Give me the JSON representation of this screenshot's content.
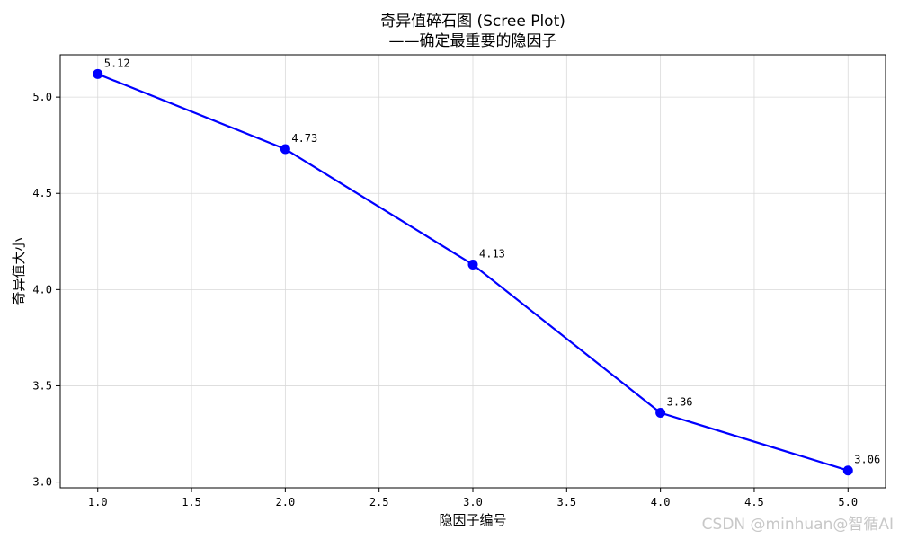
{
  "chart_data": {
    "type": "line",
    "title": "奇异值碎石图 (Scree Plot)",
    "subtitle": "——确定最重要的隐因子",
    "xlabel": "隐因子编号",
    "ylabel": "奇异值大小",
    "xlim": [
      0.8,
      5.2
    ],
    "ylim": [
      2.97,
      5.22
    ],
    "x_ticks": [
      1.0,
      1.5,
      2.0,
      2.5,
      3.0,
      3.5,
      4.0,
      4.5,
      5.0
    ],
    "x_tick_labels": [
      "1.0",
      "1.5",
      "2.0",
      "2.5",
      "3.0",
      "3.5",
      "4.0",
      "4.5",
      "5.0"
    ],
    "y_ticks": [
      3.0,
      3.5,
      4.0,
      4.5,
      5.0
    ],
    "y_tick_labels": [
      "3.0",
      "3.5",
      "4.0",
      "4.5",
      "5.0"
    ],
    "grid": true,
    "series": [
      {
        "x": [
          1,
          2,
          3,
          4,
          5
        ],
        "y": [
          5.12,
          4.73,
          4.13,
          3.36,
          3.06
        ],
        "labels": [
          "5.12",
          "4.73",
          "4.13",
          "3.36",
          "3.06"
        ],
        "color": "#0000ff",
        "marker": "circle"
      }
    ]
  },
  "watermark": "CSDN @minhuan@智循AI"
}
